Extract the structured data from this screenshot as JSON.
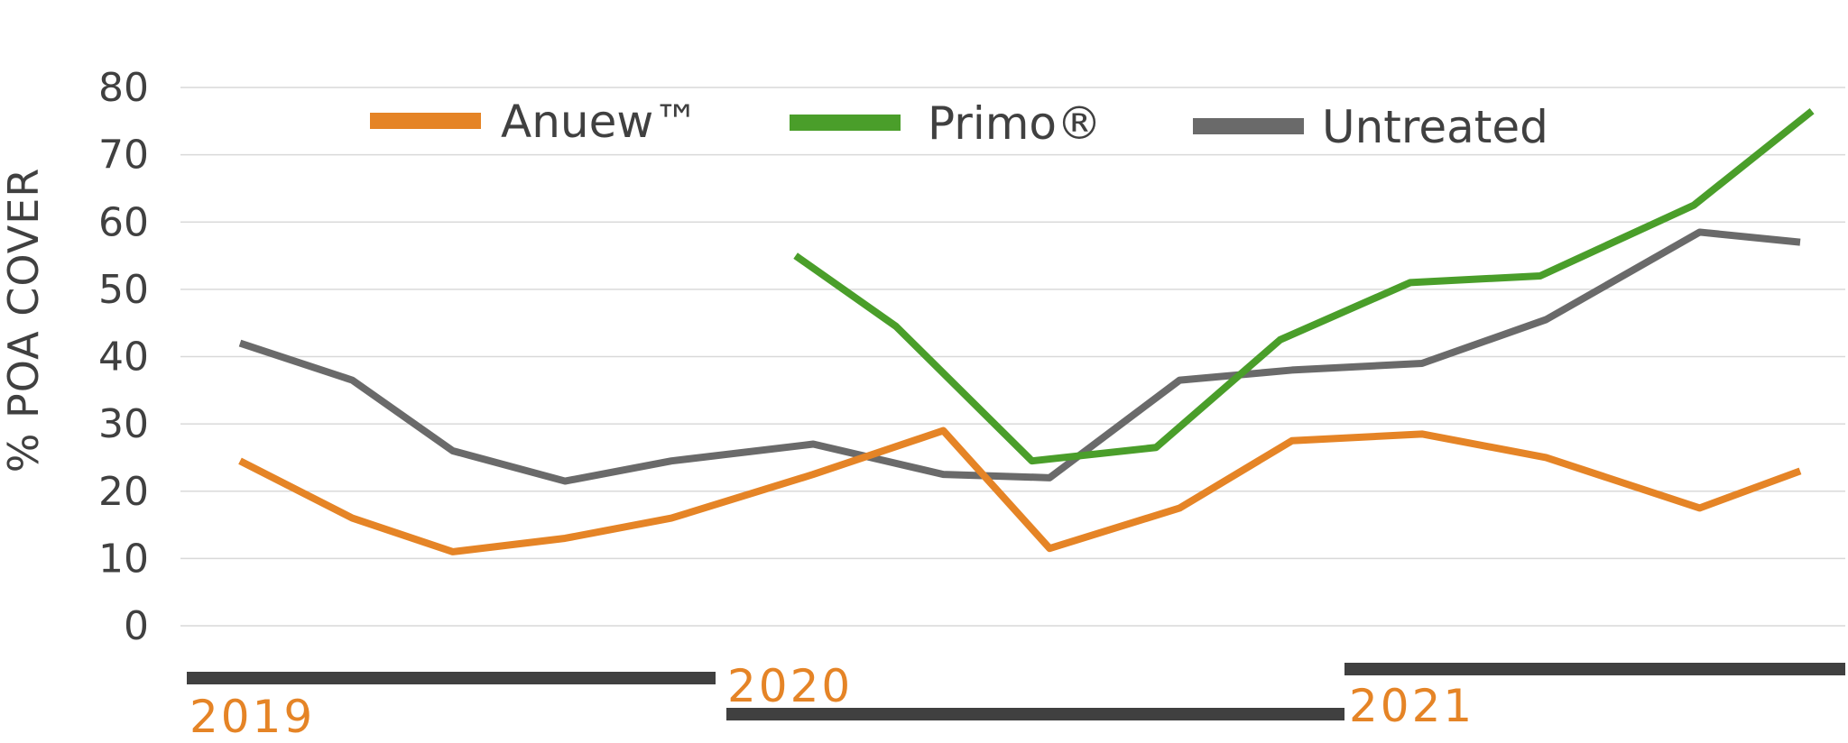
{
  "chart_data": {
    "type": "line",
    "title": "",
    "xlabel": "",
    "ylabel": "% POA COVER",
    "ylim": [
      0,
      80
    ],
    "yticks": [
      "0",
      "10",
      "20",
      "30",
      "40",
      "50",
      "60",
      "70",
      "80"
    ],
    "grid": true,
    "legend_position": "top",
    "year_labels": [
      "2019",
      "2020",
      "2021"
    ],
    "x_index_range": [
      0,
      13
    ],
    "series": [
      {
        "name": "Anuew™",
        "color": "#e58426",
        "x": [
          0,
          0.95,
          1.8,
          2.75,
          3.65,
          4.85,
          5.95,
          6.85,
          7.95,
          8.9,
          10,
          11.05,
          12.35,
          13.2
        ],
        "values": [
          24.5,
          16,
          11,
          13,
          16,
          22.5,
          29,
          11.5,
          17.5,
          27.5,
          28.5,
          25,
          17.5,
          23
        ]
      },
      {
        "name": "Primo®",
        "color": "#4a9e2a",
        "x": [
          4.7,
          5.55,
          6.7,
          7.75,
          8.8,
          9.9,
          11,
          12.3,
          13.3
        ],
        "values": [
          55,
          44.5,
          24.5,
          26.5,
          42.5,
          51,
          52,
          62.5,
          76.5
        ]
      },
      {
        "name": "Untreated",
        "color": "#6a6a6a",
        "x": [
          0,
          0.95,
          1.8,
          2.75,
          3.65,
          4.85,
          5.95,
          6.85,
          7.95,
          8.9,
          10,
          11.05,
          12.35,
          13.2
        ],
        "values": [
          42,
          36.5,
          26,
          21.5,
          24.5,
          27,
          22.5,
          22,
          36.5,
          38,
          39,
          45.5,
          58.5,
          57
        ]
      }
    ]
  }
}
